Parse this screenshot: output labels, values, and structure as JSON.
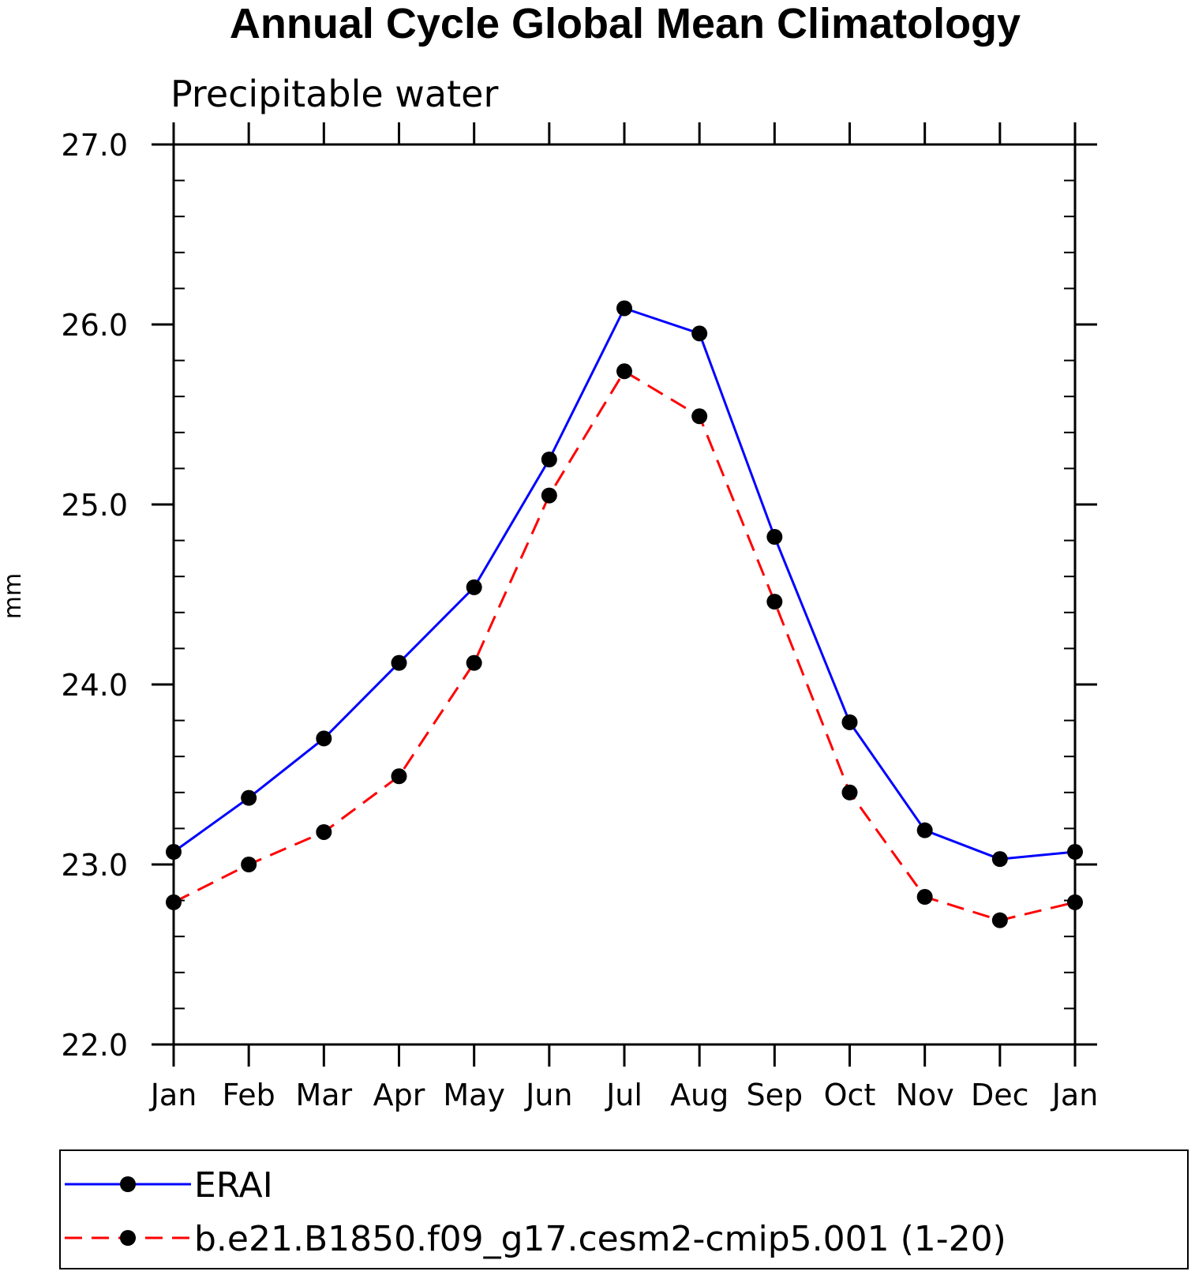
{
  "chart_data": {
    "type": "line",
    "title": "Annual Cycle Global Mean Climatology",
    "subtitle": "Precipitable water",
    "xlabel": "",
    "ylabel": "mm",
    "categories": [
      "Jan",
      "Feb",
      "Mar",
      "Apr",
      "May",
      "Jun",
      "Jul",
      "Aug",
      "Sep",
      "Oct",
      "Nov",
      "Dec",
      "Jan"
    ],
    "ylim": [
      22.0,
      27.0
    ],
    "yticks": [
      "22.0",
      "23.0",
      "24.0",
      "25.0",
      "26.0",
      "27.0"
    ],
    "grid": false,
    "legend_position": "bottom",
    "series": [
      {
        "name": "ERAI",
        "color": "#0000ff",
        "dash": "solid",
        "marker": "filled-circle",
        "values": [
          23.07,
          23.37,
          23.7,
          24.12,
          24.54,
          25.25,
          26.09,
          25.95,
          24.82,
          23.79,
          23.19,
          23.03,
          23.07
        ]
      },
      {
        "name": "b.e21.B1850.f09_g17.cesm2-cmip5.001 (1-20)",
        "color": "#ff0000",
        "dash": "dashed",
        "marker": "filled-circle",
        "values": [
          22.79,
          23.0,
          23.18,
          23.49,
          24.12,
          25.05,
          25.74,
          25.49,
          24.46,
          23.4,
          22.82,
          22.69,
          22.79
        ]
      }
    ]
  }
}
